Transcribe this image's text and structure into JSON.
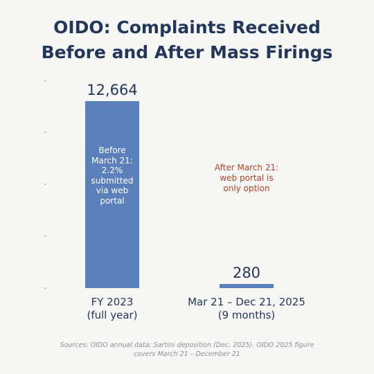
{
  "title_lines": [
    "OIDO: Complaints Received",
    "Before and After Mass Firings"
  ],
  "colors": {
    "bar": "#5b80bb",
    "title": "#22375a",
    "annotation": "#b5402a",
    "source": "#8e8e8e"
  },
  "chart_data": {
    "type": "bar",
    "title": "OIDO: Complaints Received Before and After Mass Firings",
    "categories": [
      [
        "FY 2023",
        "(full year)"
      ],
      [
        "Mar 21 – Dec 21, 2025",
        "(9 months)"
      ]
    ],
    "values": [
      12664,
      280
    ],
    "value_labels": [
      "12,664",
      "280"
    ],
    "ylim": [
      0,
      12664
    ],
    "grid": false,
    "annotations": {
      "before": "Before March 21: 2.2% submitted via web portal",
      "after": "After March 21: web portal is only option"
    }
  },
  "before_note_lines": [
    "Before",
    "March 21:",
    "2.2%",
    "submitted",
    "via web",
    "portal"
  ],
  "after_note_lines": [
    "After March 21:",
    "web portal is",
    "only option"
  ],
  "source_lines": [
    "Sources: OIDO annual data; Sartini deposition (Dec. 2025). OIDO 2025 figure",
    "covers March 21 – December 21"
  ]
}
